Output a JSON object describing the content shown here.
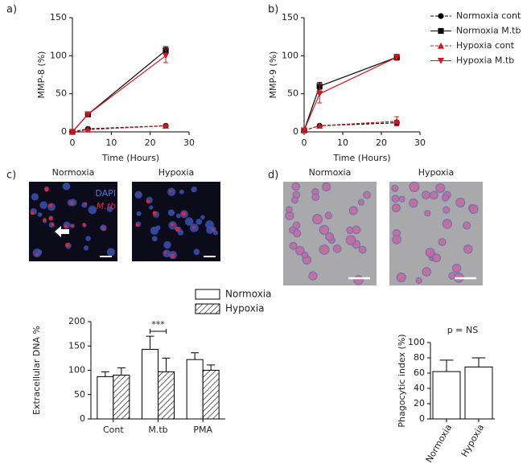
{
  "panel_labels": [
    "a)",
    "b)",
    "c)",
    "d)"
  ],
  "micrographs": {
    "c": {
      "titles": [
        "Normoxia",
        "Hypoxia"
      ],
      "stains": [
        "DAPI",
        "M.tb"
      ]
    },
    "d": {
      "titles": [
        "Normoxia",
        "Hypoxia"
      ]
    }
  },
  "chart_data": [
    {
      "type": "line",
      "x_label": "Time (Hours)",
      "y_label": "MMP-8 (%)",
      "x": [
        0,
        4,
        24
      ],
      "xlim": [
        0,
        30
      ],
      "xticks": [
        0,
        10,
        20,
        30
      ],
      "ylim": [
        0,
        150
      ],
      "yticks": [
        0,
        50,
        100,
        150
      ],
      "series": [
        {
          "color": "#000000",
          "marker": "circle",
          "dashed": true,
          "values": [
            0,
            4,
            8
          ],
          "errors": [
            null,
            null,
            1
          ]
        },
        {
          "color": "#000000",
          "marker": "square",
          "dashed": false,
          "values": [
            0,
            23,
            107
          ],
          "errors": [
            null,
            2,
            5
          ]
        },
        {
          "color": "#d4151b",
          "marker": "triangle",
          "dashed": true,
          "values": [
            0,
            3,
            8
          ],
          "errors": [
            null,
            null,
            1
          ]
        },
        {
          "color": "#d4151b",
          "marker": "triangle-down",
          "dashed": false,
          "values": [
            0,
            23,
            100
          ],
          "errors": [
            null,
            2,
            9
          ]
        }
      ]
    },
    {
      "type": "line",
      "x_label": "Time (Hours)",
      "y_label": "MMP-9 (%)",
      "legend": "right",
      "x": [
        0,
        4,
        24
      ],
      "xlim": [
        0,
        30
      ],
      "xticks": [
        0,
        10,
        20,
        30
      ],
      "ylim": [
        0,
        150
      ],
      "yticks": [
        0,
        50,
        100,
        150
      ],
      "series": [
        {
          "name": "Normoxia cont",
          "color": "#000000",
          "marker": "circle",
          "dashed": true,
          "values": [
            2,
            8,
            12
          ],
          "errors": [
            null,
            null,
            3
          ]
        },
        {
          "name": "Normoxia M.tb",
          "color": "#000000",
          "marker": "square",
          "dashed": false,
          "values": [
            2,
            60,
            98
          ],
          "errors": [
            null,
            5,
            3
          ]
        },
        {
          "name": "Hypoxia cont",
          "color": "#d4151b",
          "marker": "triangle",
          "dashed": true,
          "values": [
            2,
            8,
            14
          ],
          "errors": [
            null,
            null,
            6
          ]
        },
        {
          "name": "Hypoxia M.tb",
          "color": "#d4151b",
          "marker": "triangle-down",
          "dashed": false,
          "values": [
            2,
            50,
            98
          ],
          "errors": [
            null,
            12,
            4
          ]
        }
      ]
    },
    {
      "type": "bar",
      "y_label": "Extracellular DNA %",
      "legend": "top-right",
      "annotation": "***",
      "categories": [
        "Cont",
        "M.tb",
        "PMA"
      ],
      "ylim": [
        0,
        200
      ],
      "yticks": [
        0,
        50,
        100,
        150,
        200
      ],
      "series": [
        {
          "name": "Normoxia",
          "color": "#ffffff",
          "hatch": false,
          "values": [
            87,
            143,
            122
          ],
          "errors": [
            10,
            27,
            14
          ]
        },
        {
          "name": "Hypoxia",
          "color": "#ffffff",
          "hatch": true,
          "values": [
            90,
            97,
            100
          ],
          "errors": [
            15,
            28,
            11
          ]
        }
      ]
    },
    {
      "type": "bar",
      "y_label": "Phagocytic index (%)",
      "annotation": "p = NS",
      "categories": [
        "Normoxia",
        "Hypoxia"
      ],
      "ylim": [
        0,
        100
      ],
      "yticks": [
        0,
        20,
        40,
        60,
        80,
        100
      ],
      "series": [
        {
          "color": "#ffffff",
          "hatch": false,
          "values": [
            62,
            68
          ],
          "errors": [
            15,
            12
          ]
        }
      ]
    }
  ]
}
